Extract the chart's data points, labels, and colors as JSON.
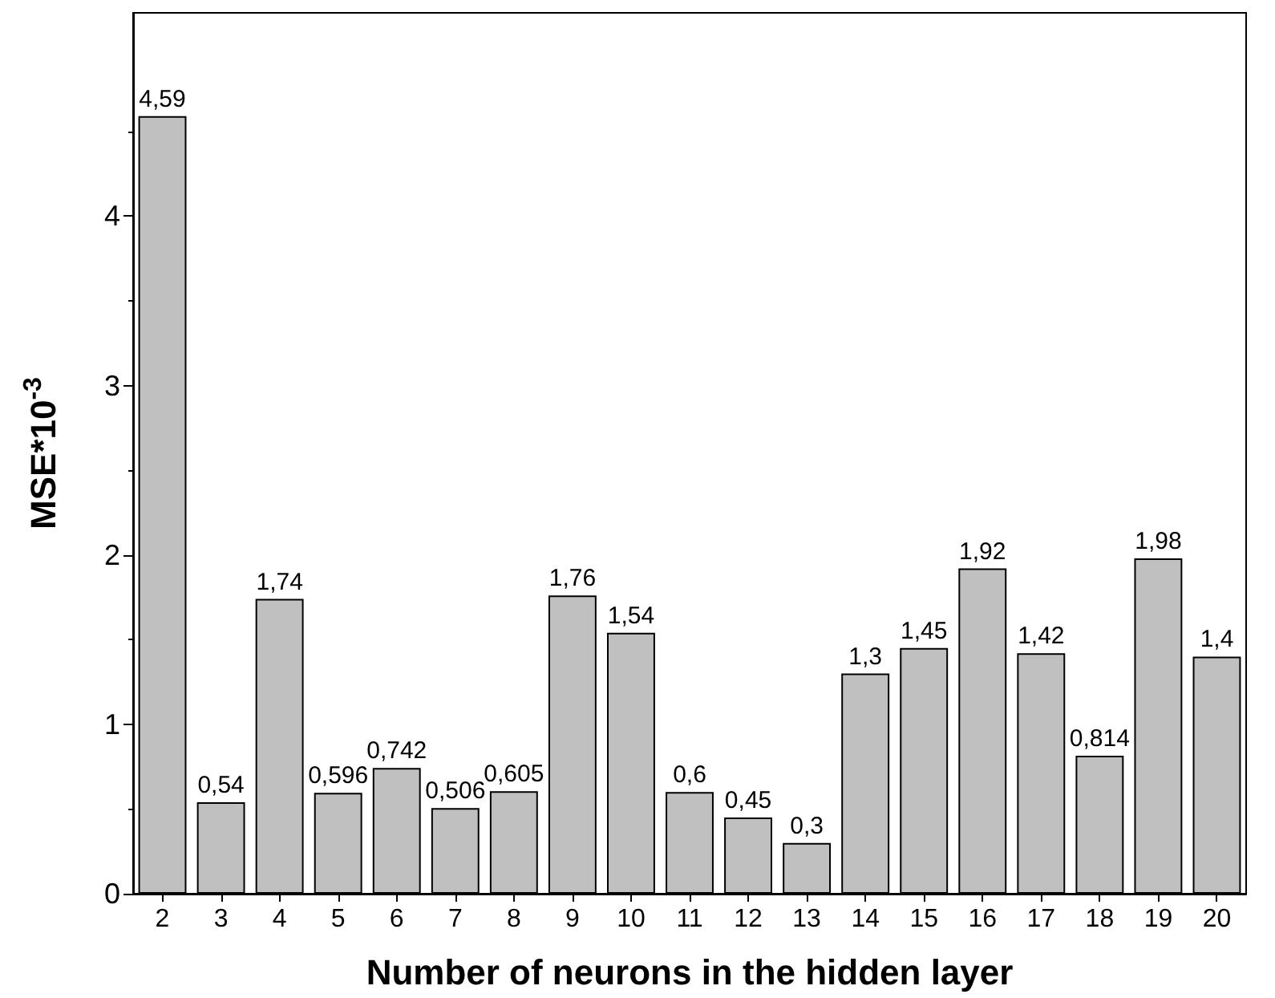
{
  "chart_data": {
    "type": "bar",
    "xlabel": "Number of neurons in the hidden layer",
    "ylabel": "MSE*10$^{-3}$",
    "categories": [
      "2",
      "3",
      "4",
      "5",
      "6",
      "7",
      "8",
      "9",
      "10",
      "11",
      "12",
      "13",
      "14",
      "15",
      "16",
      "17",
      "18",
      "19",
      "20"
    ],
    "values": [
      4.59,
      0.54,
      1.74,
      0.596,
      0.742,
      0.506,
      0.605,
      1.76,
      1.54,
      0.6,
      0.45,
      0.3,
      1.3,
      1.45,
      1.92,
      1.42,
      0.814,
      1.98,
      1.4
    ],
    "value_labels": [
      "4,59",
      "0,54",
      "1,74",
      "0,596",
      "0,742",
      "0,506",
      "0,605",
      "1,76",
      "1,54",
      "0,6",
      "0,45",
      "0,3",
      "1,3",
      "1,45",
      "1,92",
      "1,42",
      "0,814",
      "1,98",
      "1,4"
    ],
    "color": "#c0c0c0",
    "ylim": [
      0,
      5.2
    ],
    "yticks": [
      0,
      1,
      2,
      3,
      4
    ],
    "grid": false
  }
}
